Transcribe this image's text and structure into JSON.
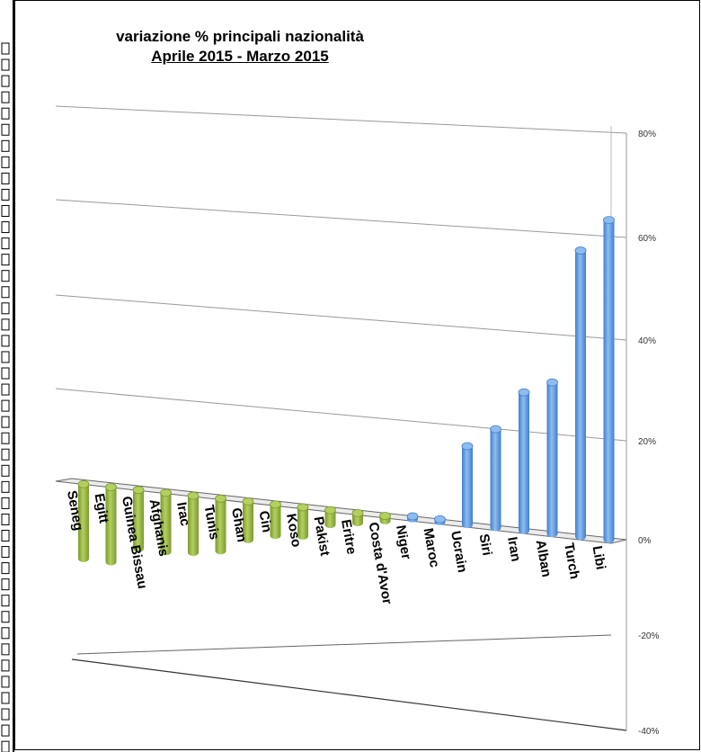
{
  "chart_data": {
    "type": "bar",
    "title": "variazione % principali nazionalità",
    "subtitle": "Aprile 2015 - Marzo 2015",
    "categories": [
      "Seneg",
      "Egitt",
      "Guinea Bissau",
      "Afghanis",
      "Irac",
      "Tunis",
      "Ghan",
      "Cin",
      "Koso",
      "Pakist",
      "Eritre",
      "Costa d'Avor",
      "Niger",
      "Maroc",
      "Ucrain",
      "Siri",
      "Iran",
      "Alban",
      "Turch",
      "Libi"
    ],
    "values": [
      -16,
      -16,
      -12.5,
      -12.5,
      -12,
      -11,
      -8,
      -6.5,
      -6,
      -3,
      -2,
      -1,
      0.5,
      0.5,
      16,
      20,
      28,
      30.5,
      57.5,
      64
    ],
    "ylim": [
      -40,
      80
    ],
    "yticks": [
      80,
      60,
      40,
      20,
      0,
      -20,
      -40
    ],
    "ytick_labels": [
      "80%",
      "60%",
      "40%",
      "20%",
      "0%",
      "-20%",
      "-40%"
    ],
    "colors": {
      "negative": "#7a9a2e",
      "negative_light": "#b5cf5f",
      "positive": "#3f7fcf",
      "positive_light": "#8fbcf0"
    },
    "grid": true,
    "legend": "none"
  },
  "left_strip": {
    "count": 44
  }
}
